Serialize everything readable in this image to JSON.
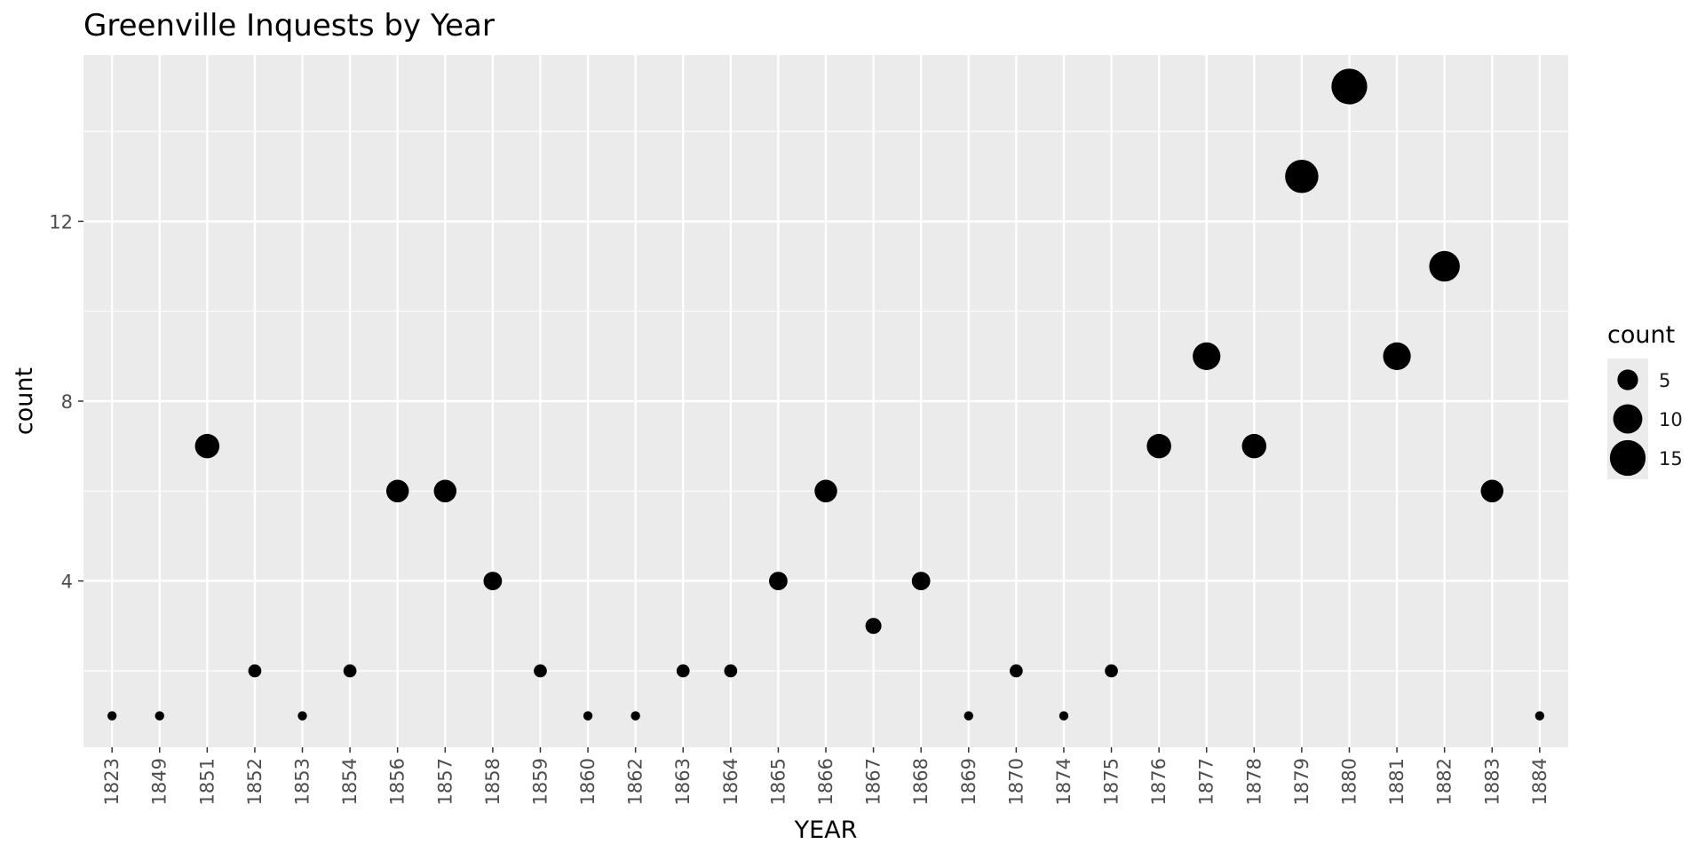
{
  "chart_data": {
    "type": "scatter",
    "title": "Greenville Inquests by Year",
    "xlabel": "YEAR",
    "ylabel": "count",
    "categories": [
      "1823",
      "1849",
      "1851",
      "1852",
      "1853",
      "1854",
      "1856",
      "1857",
      "1858",
      "1859",
      "1860",
      "1862",
      "1863",
      "1864",
      "1865",
      "1866",
      "1867",
      "1868",
      "1869",
      "1870",
      "1874",
      "1875",
      "1876",
      "1877",
      "1878",
      "1879",
      "1880",
      "1881",
      "1882",
      "1883",
      "1884"
    ],
    "values": [
      1,
      1,
      7,
      2,
      1,
      2,
      6,
      6,
      4,
      2,
      1,
      1,
      2,
      2,
      4,
      6,
      3,
      4,
      1,
      2,
      1,
      2,
      7,
      9,
      7,
      13,
      15,
      9,
      11,
      6,
      1
    ],
    "yticks": [
      4,
      8,
      12
    ],
    "ylim": [
      0.3,
      15.7
    ],
    "size_legend": {
      "title": "count",
      "breaks": [
        5,
        10,
        15
      ]
    },
    "grid": true,
    "legend_position": "right",
    "colors": {
      "panel": "#ebebeb",
      "grid": "#ffffff",
      "point": "#000000"
    }
  }
}
